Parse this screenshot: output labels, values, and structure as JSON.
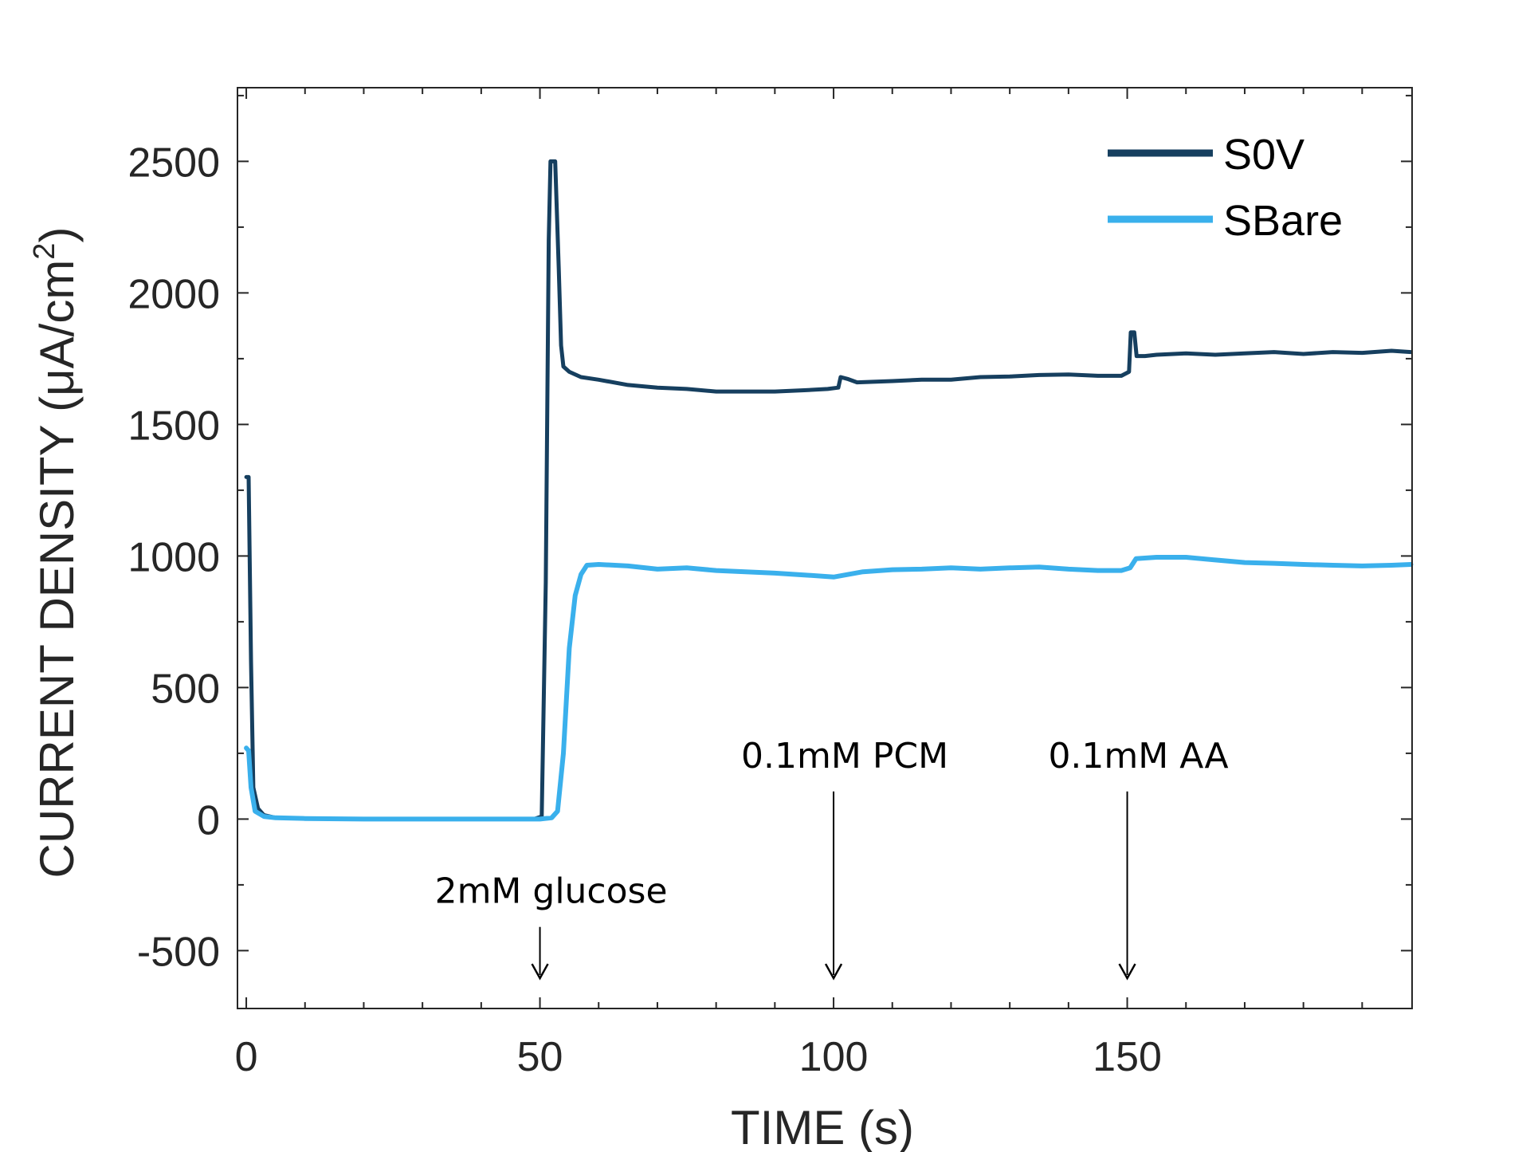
{
  "chart_data": {
    "type": "line",
    "title": "",
    "xlabel": "TIME (s)",
    "ylabel_main": "CURRENT DENSITY (μA/cm",
    "ylabel_sup": "2",
    "ylabel_close": ")",
    "xlim": [
      -1.5,
      198.5
    ],
    "ylim": [
      -720,
      2780
    ],
    "xticks": [
      0,
      50,
      100,
      150
    ],
    "xtick_labels": [
      "0",
      "50",
      "100",
      "150"
    ],
    "yticks": [
      -500,
      0,
      500,
      1000,
      1500,
      2000,
      2500
    ],
    "ytick_labels": [
      "-500",
      "0",
      "500",
      "1000",
      "1500",
      "2000",
      "2500"
    ],
    "minor_xtick_step": 10,
    "minor_ytick_step": 250,
    "grid": false,
    "legend_position": "top-right",
    "series": [
      {
        "name": "S0V",
        "color": "#163f5f",
        "points": [
          [
            0,
            1300
          ],
          [
            0.4,
            1300
          ],
          [
            0.8,
            600
          ],
          [
            1.2,
            120
          ],
          [
            2,
            40
          ],
          [
            3,
            15
          ],
          [
            5,
            5
          ],
          [
            10,
            2
          ],
          [
            20,
            0
          ],
          [
            30,
            0
          ],
          [
            40,
            0
          ],
          [
            49,
            0
          ],
          [
            50.3,
            10
          ],
          [
            51,
            900
          ],
          [
            51.5,
            2200
          ],
          [
            51.8,
            2500
          ],
          [
            52.6,
            2500
          ],
          [
            53.2,
            2100
          ],
          [
            53.6,
            1800
          ],
          [
            54,
            1720
          ],
          [
            55,
            1700
          ],
          [
            57,
            1680
          ],
          [
            60,
            1670
          ],
          [
            65,
            1650
          ],
          [
            70,
            1640
          ],
          [
            75,
            1635
          ],
          [
            80,
            1625
          ],
          [
            85,
            1625
          ],
          [
            90,
            1625
          ],
          [
            95,
            1630
          ],
          [
            99,
            1635
          ],
          [
            100.8,
            1640
          ],
          [
            101.2,
            1680
          ],
          [
            102.5,
            1672
          ],
          [
            104,
            1660
          ],
          [
            110,
            1665
          ],
          [
            115,
            1670
          ],
          [
            120,
            1670
          ],
          [
            125,
            1680
          ],
          [
            130,
            1682
          ],
          [
            135,
            1688
          ],
          [
            140,
            1690
          ],
          [
            145,
            1685
          ],
          [
            149,
            1685
          ],
          [
            150.3,
            1700
          ],
          [
            150.6,
            1850
          ],
          [
            151.2,
            1850
          ],
          [
            151.6,
            1760
          ],
          [
            153,
            1760
          ],
          [
            155,
            1765
          ],
          [
            160,
            1770
          ],
          [
            165,
            1765
          ],
          [
            170,
            1770
          ],
          [
            175,
            1775
          ],
          [
            180,
            1768
          ],
          [
            185,
            1775
          ],
          [
            190,
            1772
          ],
          [
            195,
            1780
          ],
          [
            198.3,
            1775
          ]
        ]
      },
      {
        "name": "SBare",
        "color": "#3ab0ec",
        "points": [
          [
            0,
            270
          ],
          [
            0.4,
            260
          ],
          [
            0.8,
            120
          ],
          [
            1.5,
            30
          ],
          [
            3,
            10
          ],
          [
            5,
            5
          ],
          [
            10,
            2
          ],
          [
            20,
            0
          ],
          [
            30,
            0
          ],
          [
            40,
            0
          ],
          [
            50,
            0
          ],
          [
            52,
            5
          ],
          [
            53,
            30
          ],
          [
            54,
            250
          ],
          [
            55,
            650
          ],
          [
            56,
            850
          ],
          [
            57,
            930
          ],
          [
            58,
            965
          ],
          [
            60,
            968
          ],
          [
            65,
            962
          ],
          [
            70,
            950
          ],
          [
            75,
            955
          ],
          [
            80,
            945
          ],
          [
            85,
            940
          ],
          [
            90,
            935
          ],
          [
            95,
            928
          ],
          [
            100,
            920
          ],
          [
            105,
            940
          ],
          [
            110,
            948
          ],
          [
            115,
            950
          ],
          [
            120,
            955
          ],
          [
            125,
            950
          ],
          [
            130,
            955
          ],
          [
            135,
            958
          ],
          [
            140,
            950
          ],
          [
            145,
            945
          ],
          [
            149,
            945
          ],
          [
            150.5,
            955
          ],
          [
            151.5,
            990
          ],
          [
            155,
            995
          ],
          [
            160,
            995
          ],
          [
            165,
            985
          ],
          [
            170,
            975
          ],
          [
            175,
            972
          ],
          [
            180,
            968
          ],
          [
            185,
            965
          ],
          [
            190,
            962
          ],
          [
            195,
            965
          ],
          [
            198.3,
            968
          ]
        ]
      }
    ],
    "annotations": [
      {
        "text": "2mM glucose",
        "arrow_x": 50,
        "arrow_from": -410,
        "arrow_to": -605
      },
      {
        "text": "0.1mM PCM",
        "arrow_x": 100,
        "arrow_from": 105,
        "arrow_to": -605
      },
      {
        "text": "0.1mM AA",
        "arrow_x": 150,
        "arrow_from": 105,
        "arrow_to": -605
      }
    ]
  }
}
